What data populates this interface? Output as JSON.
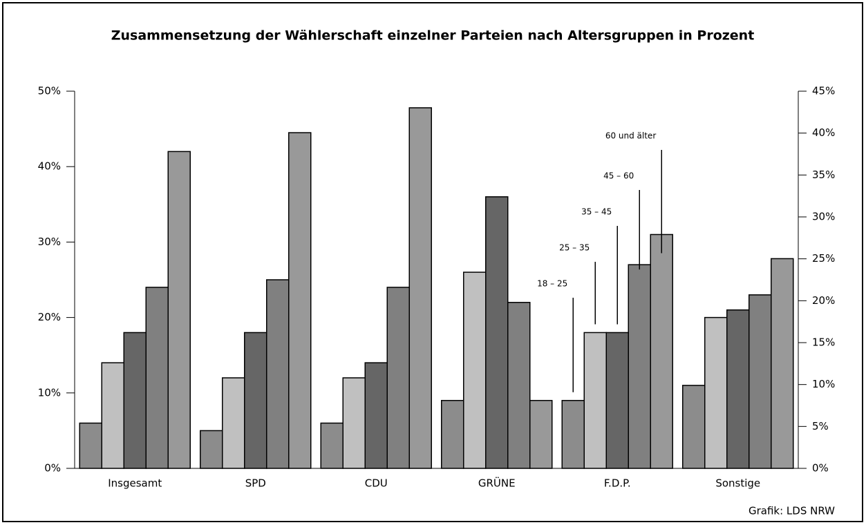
{
  "chart_data": {
    "type": "bar",
    "title": "Zusammensetzung der Wählerschaft einzelner Parteien nach Altersgruppen in Prozent",
    "categories": [
      "Insgesamt",
      "SPD",
      "CDU",
      "GRÜNE",
      "F.D.P.",
      "Sonstige"
    ],
    "series": [
      {
        "name": "18 – 25",
        "color": "#8c8c8c",
        "values": [
          6,
          5,
          6,
          9,
          9,
          11
        ]
      },
      {
        "name": "25 – 35",
        "color": "#c0c0c0",
        "values": [
          14,
          12,
          12,
          26,
          18,
          20
        ]
      },
      {
        "name": "35 – 45",
        "color": "#666666",
        "values": [
          18,
          18,
          14,
          36,
          18,
          21
        ]
      },
      {
        "name": "45 – 60",
        "color": "#808080",
        "values": [
          24,
          25,
          24,
          22,
          27,
          23
        ]
      },
      {
        "name": "60 und älter",
        "color": "#999999",
        "values": [
          42,
          44.5,
          47.8,
          9,
          31,
          27.8
        ]
      }
    ],
    "ylim": [
      0,
      50
    ],
    "yticks": [
      {
        "value": 0,
        "label": "0%"
      },
      {
        "value": 10,
        "label": "10%"
      },
      {
        "value": 20,
        "label": "20%"
      },
      {
        "value": 30,
        "label": "30%"
      },
      {
        "value": 40,
        "label": "40%"
      },
      {
        "value": 50,
        "label": "50%"
      }
    ],
    "y2lim": [
      0,
      45
    ],
    "y2ticks": [
      {
        "value": 0,
        "label": "0%"
      },
      {
        "value": 5,
        "label": "5%"
      },
      {
        "value": 10,
        "label": "10%"
      },
      {
        "value": 15,
        "label": "15%"
      },
      {
        "value": 20,
        "label": "20%"
      },
      {
        "value": 25,
        "label": "25%"
      },
      {
        "value": 30,
        "label": "30%"
      },
      {
        "value": 35,
        "label": "35%"
      },
      {
        "value": 40,
        "label": "40%"
      },
      {
        "value": 45,
        "label": "45%"
      }
    ],
    "legend": "F.D.P.",
    "source": "Grafik: LDS NRW"
  }
}
